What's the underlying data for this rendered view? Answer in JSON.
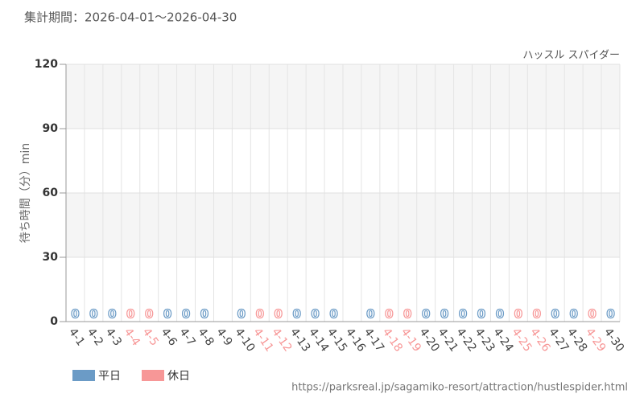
{
  "chart_data": {
    "type": "bar",
    "title": "集計期間：2026-04-01～2026-04-30",
    "subtitle": "ハッスル スパイダー",
    "ylabel": "待ち時間（分）min",
    "source": "https://parksreal.jp/sagamiko-resort/attraction/hustlespider.html",
    "categories": [
      "4-1",
      "4-2",
      "4-3",
      "4-4",
      "4-5",
      "4-6",
      "4-7",
      "4-8",
      "4-9",
      "4-10",
      "4-11",
      "4-12",
      "4-13",
      "4-14",
      "4-15",
      "4-16",
      "4-17",
      "4-18",
      "4-19",
      "4-20",
      "4-21",
      "4-22",
      "4-23",
      "4-24",
      "4-25",
      "4-26",
      "4-27",
      "4-28",
      "4-29",
      "4-30"
    ],
    "series": [
      {
        "name": "平日",
        "color": "#6b9bc6",
        "values": [
          0,
          0,
          0,
          null,
          null,
          0,
          0,
          0,
          null,
          0,
          null,
          null,
          0,
          0,
          0,
          null,
          0,
          null,
          null,
          0,
          0,
          0,
          0,
          0,
          null,
          null,
          0,
          0,
          null,
          0
        ]
      },
      {
        "name": "休日",
        "color": "#f79797",
        "values": [
          null,
          null,
          null,
          0,
          0,
          null,
          null,
          null,
          null,
          null,
          0,
          0,
          null,
          null,
          null,
          null,
          null,
          0,
          0,
          null,
          null,
          null,
          null,
          null,
          0,
          0,
          null,
          null,
          0,
          null
        ]
      }
    ],
    "ylim": [
      0,
      120
    ],
    "yticks": [
      0,
      30,
      60,
      90,
      120
    ],
    "grid": true,
    "legend": "bottom-left"
  }
}
